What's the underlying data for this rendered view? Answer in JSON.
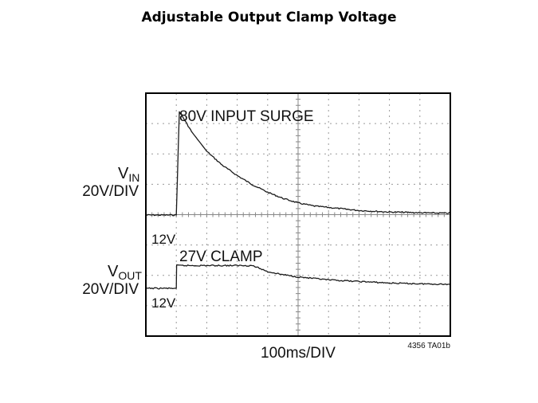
{
  "page": {
    "title": "Adjustable Output Clamp Voltage"
  },
  "chart_data": {
    "type": "line",
    "title": "",
    "xlabel": "100ms/DIV",
    "ylabel": "",
    "grid": true,
    "divisions": {
      "x": 10,
      "y": 8
    },
    "xlim": [
      0,
      1000
    ],
    "x_unit": "ms",
    "figure_id": "4356 TA01b",
    "channels": [
      {
        "id": "vin",
        "label_main": "V",
        "label_sub": "IN",
        "scale": "20V/DIV",
        "baseline_label": "12V"
      },
      {
        "id": "vout",
        "label_main": "V",
        "label_sub": "OUT",
        "scale": "20V/DIV",
        "baseline_label": "12V"
      }
    ],
    "annotations": [
      "80V INPUT SURGE",
      "27V CLAMP"
    ],
    "series": [
      {
        "name": "",
        "channel": "vin",
        "x": [
          0,
          100,
          110,
          120,
          150,
          200,
          250,
          300,
          350,
          400,
          450,
          500,
          550,
          600,
          650,
          700,
          750,
          800,
          850,
          900,
          950,
          1000
        ],
        "y": [
          12,
          12,
          80,
          77,
          67,
          54,
          45,
          38,
          32,
          27,
          23,
          20,
          18,
          17,
          16,
          15,
          14.5,
          14,
          13.8,
          13.5,
          13.3,
          13.2
        ]
      },
      {
        "name": "",
        "channel": "vout",
        "x": [
          0,
          100,
          101,
          150,
          200,
          250,
          300,
          350,
          400,
          450,
          500,
          550,
          600,
          650,
          700,
          750,
          800,
          850,
          900,
          950,
          1000
        ],
        "y": [
          12,
          12,
          27,
          27,
          27,
          27,
          27,
          27,
          23,
          21,
          19.5,
          18.5,
          17.5,
          17,
          16.5,
          16,
          15.5,
          15.2,
          15,
          14.8,
          14.6
        ]
      }
    ]
  }
}
